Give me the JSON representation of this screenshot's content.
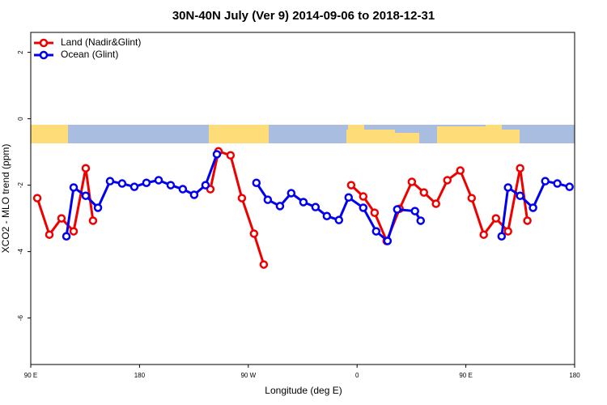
{
  "chart_data": {
    "type": "line",
    "title": "30N-40N July (Ver 9)   2014-09-06 to 2018-12-31",
    "x_label": "Longitude (deg E)",
    "y_label": "XCO2 - MLO trend (ppm)",
    "xlim": [
      90,
      540
    ],
    "ylim": [
      -7.4,
      2.6
    ],
    "xticks": [
      {
        "value": 90,
        "label": "90 E"
      },
      180,
      {
        "value": 270,
        "label": "90 W"
      },
      {
        "value": 360,
        "label": "0"
      },
      {
        "value": 450,
        "label": "90 E"
      },
      {
        "value": 540,
        "label": "180"
      }
    ],
    "yticks": [
      2,
      0,
      -2,
      -4,
      -6
    ],
    "legend": "top-left",
    "series": [
      {
        "name": "Land (Nadir&Glint)",
        "color": "#ee0000",
        "x": [
          95.4,
          105.4,
          115.4,
          125.5,
          135.5,
          141.5,
          null,
          238.6,
          245.3,
          255.3,
          264.7,
          274.7,
          282.8,
          null,
          355.1,
          365.1,
          374.5,
          384.5,
          395.2,
          405.3,
          415.3,
          425.3,
          434.7,
          445.4,
          454.8,
          464.8,
          474.9,
          484.9,
          494.9,
          500.9
        ],
        "values": [
          -2.39,
          -3.49,
          -3.0,
          -3.39,
          -1.49,
          -3.07,
          null,
          -2.12,
          -0.98,
          -1.1,
          -2.39,
          -3.46,
          -4.39,
          null,
          -2.0,
          -2.34,
          -2.83,
          -3.68,
          -2.71,
          -1.9,
          -2.22,
          -2.56,
          -1.85,
          -1.56,
          -2.39,
          -3.49,
          -3.0,
          -3.39,
          -1.49,
          -3.07
        ]
      },
      {
        "name": "Ocean (Glint)",
        "color": "#0000ee",
        "x": [
          119.5,
          125.5,
          135.5,
          145.6,
          155.6,
          165.6,
          175.7,
          185.7,
          195.8,
          205.8,
          215.8,
          225.2,
          234.6,
          244.0,
          null,
          276.7,
          286.1,
          296.2,
          305.5,
          315.6,
          325.6,
          335.0,
          345.0,
          353.0,
          365.1,
          375.8,
          385.2,
          393.2,
          407.9,
          412.6,
          null,
          479.6,
          484.9,
          494.9,
          505.6,
          515.7,
          525.7,
          535.8
        ],
        "values": [
          -3.54,
          -2.07,
          -2.32,
          -2.68,
          -1.88,
          -1.95,
          -2.05,
          -1.93,
          -1.85,
          -2.0,
          -2.12,
          -2.29,
          -2.0,
          -1.07,
          null,
          -1.93,
          -2.44,
          -2.63,
          -2.24,
          -2.51,
          -2.66,
          -2.93,
          -3.05,
          -2.37,
          -2.68,
          -3.39,
          -3.68,
          -2.73,
          -2.78,
          -3.07,
          null,
          -3.54,
          -2.07,
          -2.32,
          -2.68,
          -1.88,
          -1.95,
          -2.05
        ]
      }
    ]
  }
}
